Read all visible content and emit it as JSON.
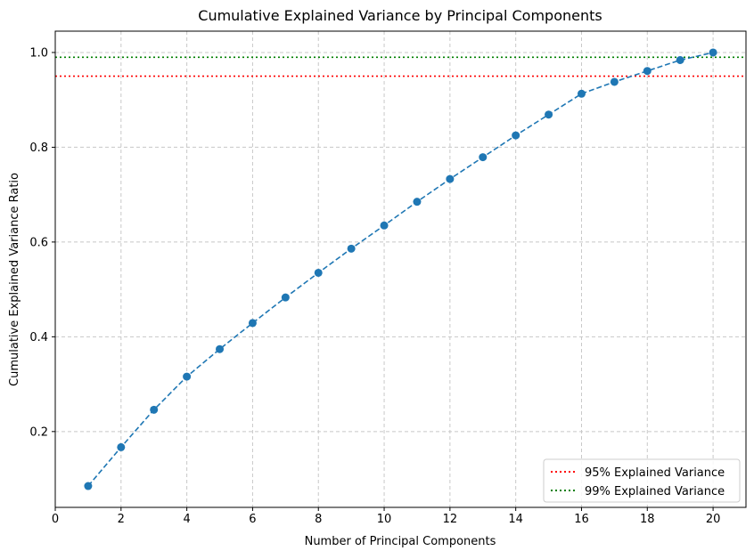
{
  "chart_data": {
    "type": "line",
    "title": "Cumulative Explained Variance by Principal Components",
    "xlabel": "Number of Principal Components",
    "ylabel": "Cumulative Explained Variance Ratio",
    "xlim": [
      0,
      21
    ],
    "ylim": [
      0.04,
      1.045
    ],
    "x_ticks": [
      0,
      2,
      4,
      6,
      8,
      10,
      12,
      14,
      16,
      18,
      20
    ],
    "x_tick_labels": [
      "0",
      "2",
      "4",
      "6",
      "8",
      "10",
      "12",
      "14",
      "16",
      "18",
      "20"
    ],
    "y_ticks": [
      0.2,
      0.4,
      0.6,
      0.8,
      1.0
    ],
    "y_tick_labels": [
      "0.2",
      "0.4",
      "0.6",
      "0.8",
      "1.0"
    ],
    "grid": true,
    "legend_position": "bottom-right",
    "series": [
      {
        "color": "#1f77b4",
        "linestyle": "dashed",
        "marker": "circle",
        "x": [
          1,
          2,
          3,
          4,
          5,
          6,
          7,
          8,
          9,
          10,
          11,
          12,
          13,
          14,
          15,
          16,
          17,
          18,
          19,
          20
        ],
        "y": [
          0.085,
          0.167,
          0.246,
          0.316,
          0.374,
          0.429,
          0.483,
          0.535,
          0.586,
          0.635,
          0.685,
          0.733,
          0.779,
          0.825,
          0.869,
          0.913,
          0.938,
          0.961,
          0.984,
          1.0
        ]
      }
    ],
    "reference_lines": [
      {
        "name": "95% Explained Variance",
        "y": 0.95,
        "color": "#ff0000",
        "linestyle": "dotted"
      },
      {
        "name": "99% Explained Variance",
        "y": 0.99,
        "color": "#008000",
        "linestyle": "dotted"
      }
    ]
  }
}
